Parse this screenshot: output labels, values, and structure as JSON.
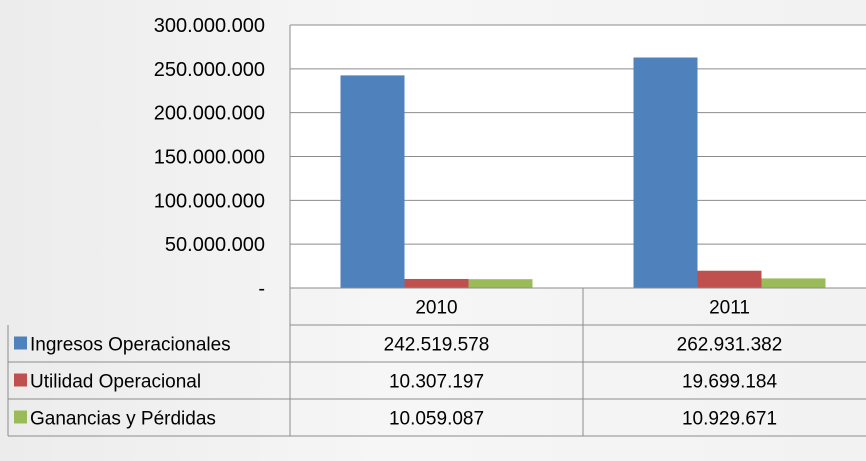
{
  "chart_data": {
    "type": "bar",
    "categories": [
      "2010",
      "2011"
    ],
    "series": [
      {
        "name": "Ingresos Operacionales",
        "color": "#4F81BD",
        "values": [
          242519578,
          262931382
        ],
        "display": [
          "242.519.578",
          "262.931.382"
        ]
      },
      {
        "name": "Utilidad Operacional",
        "color": "#C0504D",
        "values": [
          10307197,
          19699184
        ],
        "display": [
          "10.307.197",
          "19.699.184"
        ]
      },
      {
        "name": "Ganancias y Pérdidas",
        "color": "#9BBB59",
        "values": [
          10059087,
          10929671
        ],
        "display": [
          "10.059.087",
          "10.929.671"
        ]
      }
    ],
    "ylim": [
      0,
      300000000
    ],
    "yticks": [
      0,
      50000000,
      100000000,
      150000000,
      200000000,
      250000000,
      300000000
    ],
    "ytick_labels": [
      "-",
      "50.000.000",
      "100.000.000",
      "150.000.000",
      "200.000.000",
      "250.000.000",
      "300.000.000"
    ],
    "grid": true,
    "legend": "data-table"
  }
}
